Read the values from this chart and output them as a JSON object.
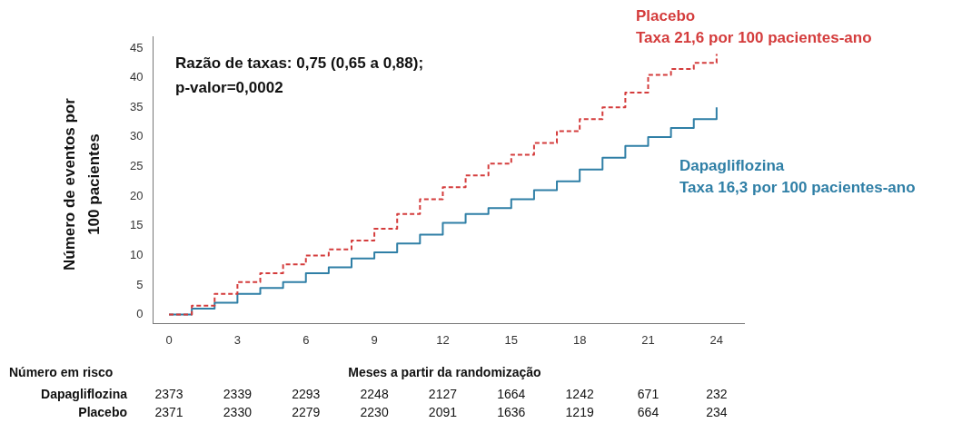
{
  "chart_data": {
    "type": "step",
    "ylabel": "Número de eventos por 100 pacientes",
    "xlabel": "Meses a partir da randomização",
    "x": [
      0,
      1,
      2,
      3,
      4,
      5,
      6,
      7,
      8,
      9,
      10,
      11,
      12,
      13,
      14,
      15,
      16,
      17,
      18,
      19,
      20,
      21,
      22,
      23,
      24
    ],
    "series": [
      {
        "name": "Placebo",
        "color": "#d43c3c",
        "line_style": "dashed",
        "values": [
          0,
          1.5,
          3.5,
          5.5,
          7,
          8.5,
          10,
          11,
          12.5,
          14.5,
          17,
          19.5,
          21.5,
          23.5,
          25.5,
          27,
          29,
          31,
          33,
          35,
          37.5,
          40.5,
          41.5,
          42.5,
          44
        ]
      },
      {
        "name": "Dapagliflozina",
        "color": "#2f7fa6",
        "line_style": "solid",
        "values": [
          0,
          1,
          2,
          3.5,
          4.5,
          5.5,
          7,
          8,
          9.5,
          10.5,
          12,
          13.5,
          15.5,
          17,
          18,
          19.5,
          21,
          22.5,
          24.5,
          26.5,
          28.5,
          30,
          31.5,
          33,
          35
        ]
      }
    ],
    "xlim": [
      -0.7,
      25.2
    ],
    "ylim": [
      -1.5,
      47
    ],
    "xticks": [
      0,
      3,
      6,
      9,
      12,
      15,
      18,
      21,
      24
    ],
    "yticks": [
      0,
      5,
      10,
      15,
      20,
      25,
      30,
      35,
      40,
      45
    ],
    "grid": false,
    "legend": false,
    "marker": "none",
    "annotations": [
      "Razão de taxas: 0,75 (0,65 a 0,88); p-valor=0,0002",
      "Taxa 21,6 por 100 pacientes-ano",
      "Taxa 16,3 por 100 pacientes-ano",
      "Número em risco",
      "Dapagliflozina",
      "2373",
      "2339",
      "2293",
      "2248",
      "2127",
      "1664",
      "1242",
      "671",
      "232",
      "Placebo",
      "2371",
      "2330",
      "2279",
      "2230",
      "2091",
      "1636",
      "1219",
      "664",
      "234"
    ]
  }
}
